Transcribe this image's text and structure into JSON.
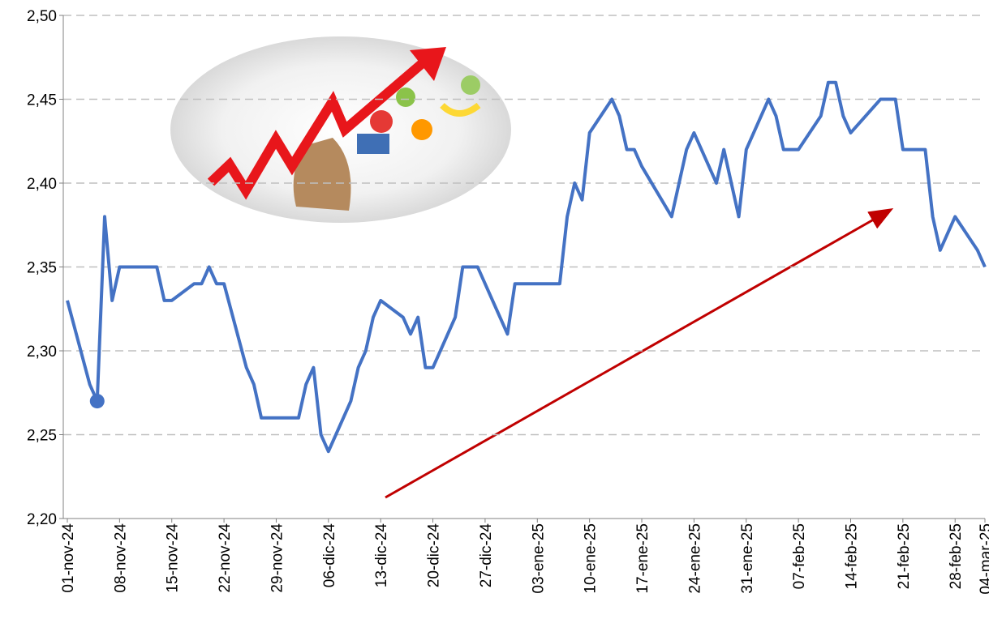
{
  "chart_data": {
    "type": "line",
    "color": "#4472c4",
    "x": [
      "2024-11-01",
      "2024-11-04",
      "2024-11-05",
      "2024-11-06",
      "2024-11-07",
      "2024-11-08",
      "2024-11-13",
      "2024-11-14",
      "2024-11-15",
      "2024-11-18",
      "2024-11-19",
      "2024-11-20",
      "2024-11-21",
      "2024-11-22",
      "2024-11-25",
      "2024-11-26",
      "2024-11-27",
      "2024-12-02",
      "2024-12-03",
      "2024-12-04",
      "2024-12-05",
      "2024-12-06",
      "2024-12-09",
      "2024-12-10",
      "2024-12-11",
      "2024-12-12",
      "2024-12-13",
      "2024-12-16",
      "2024-12-17",
      "2024-12-18",
      "2024-12-19",
      "2024-12-20",
      "2024-12-23",
      "2024-12-24",
      "2024-12-26",
      "2024-12-30",
      "2024-12-31",
      "2025-01-06",
      "2025-01-07",
      "2025-01-08",
      "2025-01-09",
      "2025-01-10",
      "2025-01-13",
      "2025-01-14",
      "2025-01-15",
      "2025-01-16",
      "2025-01-17",
      "2025-01-21",
      "2025-01-23",
      "2025-01-24",
      "2025-01-27",
      "2025-01-28",
      "2025-01-30",
      "2025-01-31",
      "2025-02-03",
      "2025-02-04",
      "2025-02-05",
      "2025-02-07",
      "2025-02-10",
      "2025-02-11",
      "2025-02-12",
      "2025-02-13",
      "2025-02-14",
      "2025-02-18",
      "2025-02-20",
      "2025-02-21",
      "2025-02-24",
      "2025-02-25",
      "2025-02-26",
      "2025-02-28",
      "2025-03-03",
      "2025-03-04"
    ],
    "values": [
      2.33,
      2.28,
      2.27,
      2.38,
      2.33,
      2.35,
      2.35,
      2.33,
      2.33,
      2.34,
      2.34,
      2.35,
      2.34,
      2.34,
      2.29,
      2.28,
      2.26,
      2.26,
      2.28,
      2.29,
      2.25,
      2.24,
      2.27,
      2.29,
      2.3,
      2.32,
      2.33,
      2.32,
      2.31,
      2.32,
      2.29,
      2.29,
      2.32,
      2.35,
      2.35,
      2.31,
      2.34,
      2.34,
      2.38,
      2.4,
      2.39,
      2.43,
      2.45,
      2.44,
      2.42,
      2.42,
      2.41,
      2.38,
      2.42,
      2.43,
      2.4,
      2.42,
      2.38,
      2.42,
      2.45,
      2.44,
      2.42,
      2.42,
      2.44,
      2.46,
      2.46,
      2.44,
      2.43,
      2.45,
      2.45,
      2.42,
      2.42,
      2.38,
      2.36,
      2.38,
      2.36,
      2.35
    ],
    "highlight": "2024-11-05",
    "xlim": [
      "2024-11-01",
      "2025-03-04"
    ],
    "xticks": [
      {
        "value": "2024-11-01",
        "label": "01-nov-24"
      },
      {
        "value": "2024-11-08",
        "label": "08-nov-24"
      },
      {
        "value": "2024-11-15",
        "label": "15-nov-24"
      },
      {
        "value": "2024-11-22",
        "label": "22-nov-24"
      },
      {
        "value": "2024-11-29",
        "label": "29-nov-24"
      },
      {
        "value": "2024-12-06",
        "label": "06-dic-24"
      },
      {
        "value": "2024-12-13",
        "label": "13-dic-24"
      },
      {
        "value": "2024-12-20",
        "label": "20-dic-24"
      },
      {
        "value": "2024-12-27",
        "label": "27-dic-24"
      },
      {
        "value": "2025-01-03",
        "label": "03-ene-25"
      },
      {
        "value": "2025-01-10",
        "label": "10-ene-25"
      },
      {
        "value": "2025-01-17",
        "label": "17-ene-25"
      },
      {
        "value": "2025-01-24",
        "label": "24-ene-25"
      },
      {
        "value": "2025-01-31",
        "label": "31-ene-25"
      },
      {
        "value": "2025-02-07",
        "label": "07-feb-25"
      },
      {
        "value": "2025-02-14",
        "label": "14-feb-25"
      },
      {
        "value": "2025-02-21",
        "label": "21-feb-25"
      },
      {
        "value": "2025-02-28",
        "label": "28-feb-25"
      },
      {
        "value": "2025-03-04",
        "label": "04-mar-25"
      }
    ],
    "ylim": [
      2.2,
      2.5
    ],
    "yticks": [
      {
        "value": 2.2,
        "label": "2,20"
      },
      {
        "value": 2.25,
        "label": "2,25"
      },
      {
        "value": 2.3,
        "label": "2,30"
      },
      {
        "value": 2.35,
        "label": "2,35"
      },
      {
        "value": 2.4,
        "label": "2,40"
      },
      {
        "value": 2.45,
        "label": "2,45"
      },
      {
        "value": 2.5,
        "label": "2,50"
      }
    ],
    "grid": true
  }
}
